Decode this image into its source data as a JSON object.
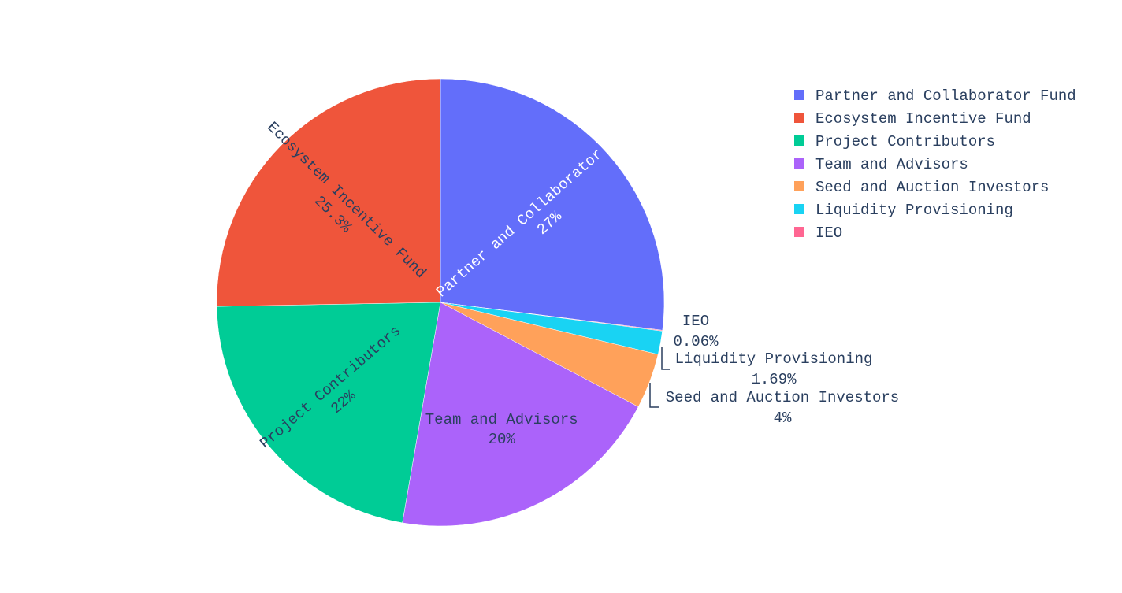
{
  "chart_data": {
    "type": "pie",
    "title": "",
    "direction": "clockwise",
    "start_angle_deg": 90,
    "labels": [
      "Partner and Collaborator Fund",
      "IEO",
      "Liquidity Provisioning",
      "Seed and Auction Investors",
      "Team and Advisors",
      "Project Contributors",
      "Ecosystem Incentive Fund"
    ],
    "values": [
      27,
      0.06,
      1.69,
      4,
      20,
      22,
      25.3
    ],
    "text_labels": [
      "27%",
      "0.06%",
      "1.69%",
      "4%",
      "20%",
      "22%",
      "25.3%"
    ],
    "colors": [
      "#636efa",
      "#ff6692",
      "#19d3f3",
      "#ffa15a",
      "#ab63fa",
      "#00cc96",
      "#ef553b"
    ],
    "legend": {
      "position": "top-right",
      "items": [
        {
          "label": "Partner and Collaborator Fund",
          "color": "#636efa"
        },
        {
          "label": "Ecosystem Incentive Fund",
          "color": "#ef553b"
        },
        {
          "label": "Project Contributors",
          "color": "#00cc96"
        },
        {
          "label": "Team and Advisors",
          "color": "#ab63fa"
        },
        {
          "label": "Seed and Auction Investors",
          "color": "#ffa15a"
        },
        {
          "label": "Liquidity Provisioning",
          "color": "#19d3f3"
        },
        {
          "label": "IEO",
          "color": "#ff6692"
        }
      ]
    }
  }
}
